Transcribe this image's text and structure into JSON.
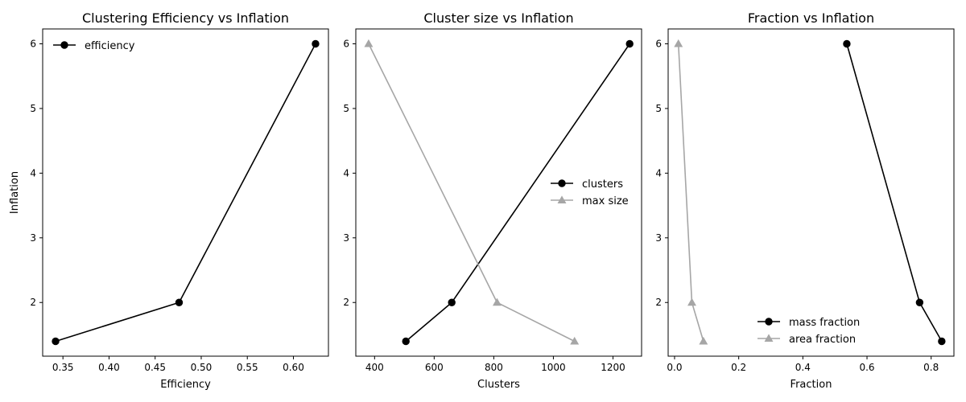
{
  "chart_data": [
    {
      "type": "line",
      "title": "Clustering Efficiency vs Inflation",
      "xlabel": "Efficiency",
      "ylabel": "Inflation",
      "xlim": [
        0.328,
        0.638
      ],
      "ylim": [
        1.17,
        6.23
      ],
      "xticks": [
        0.35,
        0.4,
        0.45,
        0.5,
        0.55,
        0.6
      ],
      "xtick_labels": [
        "0.35",
        "0.40",
        "0.45",
        "0.50",
        "0.55",
        "0.60"
      ],
      "yticks": [
        2,
        3,
        4,
        5,
        6
      ],
      "ytick_labels": [
        "2",
        "3",
        "4",
        "5",
        "6"
      ],
      "grid": false,
      "legend_position": "top-left",
      "series": [
        {
          "name": "efficiency",
          "color": "#000000",
          "marker": "circle",
          "x": [
            0.342,
            0.476,
            0.624
          ],
          "y": [
            1.4,
            2.0,
            6.0
          ]
        }
      ]
    },
    {
      "type": "line",
      "title": "Cluster size vs Inflation",
      "xlabel": "Clusters",
      "ylabel": "",
      "xlim": [
        337,
        1296
      ],
      "ylim": [
        1.17,
        6.23
      ],
      "xticks": [
        400,
        600,
        800,
        1000,
        1200
      ],
      "xtick_labels": [
        "400",
        "600",
        "800",
        "1000",
        "1200"
      ],
      "yticks": [
        2,
        3,
        4,
        5,
        6
      ],
      "ytick_labels": [
        "2",
        "3",
        "4",
        "5",
        "6"
      ],
      "grid": false,
      "legend_position": "center-right",
      "series": [
        {
          "name": "clusters",
          "color": "#000000",
          "marker": "circle",
          "x": [
            505,
            659,
            1256
          ],
          "y": [
            1.4,
            2.0,
            6.0
          ]
        },
        {
          "name": "max size",
          "color": "#a6a6a6",
          "marker": "triangle",
          "x": [
            380,
            811,
            1071
          ],
          "y": [
            6.0,
            2.0,
            1.4
          ]
        }
      ]
    },
    {
      "type": "line",
      "title": "Fraction vs Inflation",
      "xlabel": "Fraction",
      "ylabel": "",
      "xlim": [
        -0.02,
        0.871
      ],
      "ylim": [
        1.17,
        6.23
      ],
      "xticks": [
        0.0,
        0.2,
        0.4,
        0.6,
        0.8
      ],
      "xtick_labels": [
        "0.0",
        "0.2",
        "0.4",
        "0.6",
        "0.8"
      ],
      "yticks": [
        2,
        3,
        4,
        5,
        6
      ],
      "ytick_labels": [
        "2",
        "3",
        "4",
        "5",
        "6"
      ],
      "grid": false,
      "legend_position": "bottom-right",
      "series": [
        {
          "name": "mass fraction",
          "color": "#000000",
          "marker": "circle",
          "x": [
            0.537,
            0.764,
            0.833
          ],
          "y": [
            6.0,
            2.0,
            1.4
          ]
        },
        {
          "name": "area fraction",
          "color": "#a6a6a6",
          "marker": "triangle",
          "x": [
            0.012,
            0.054,
            0.09
          ],
          "y": [
            6.0,
            2.0,
            1.4
          ]
        }
      ]
    }
  ]
}
